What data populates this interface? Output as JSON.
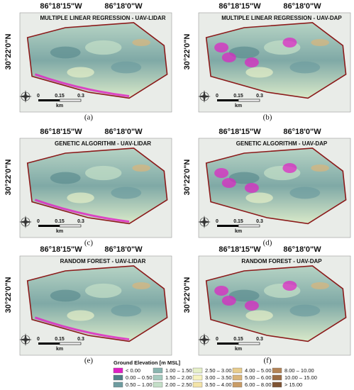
{
  "panels": [
    {
      "title": "MULTIPLE LINEAR REGRESSION - UAV-LIDAR",
      "lon_labels": [
        "86°18'15\"W",
        "86°18'0\"W"
      ],
      "lat_label": "30°22'0\"N",
      "scale": [
        "0",
        "0.15",
        "0.3"
      ],
      "scale_unit": "km",
      "caption": "(a)"
    },
    {
      "title": "MULTIPLE LINEAR REGRESSION - UAV-DAP",
      "lon_labels": [
        "86°18'15\"W",
        "86°18'0\"W"
      ],
      "lat_label": "30°22'0\"N",
      "scale": [
        "0",
        "0.15",
        "0.3"
      ],
      "scale_unit": "km",
      "caption": "(b)"
    },
    {
      "title": "GENETIC ALGORITHM - UAV-LIDAR",
      "lon_labels": [
        "86°18'15\"W",
        "86°18'0\"W"
      ],
      "lat_label": "30°22'0\"N",
      "scale": [
        "0",
        "0.15",
        "0.3"
      ],
      "scale_unit": "km",
      "caption": "(c)"
    },
    {
      "title": "GENETIC ALGORITHM - UAV-DAP",
      "lon_labels": [
        "86°18'15\"W",
        "86°18'0\"W"
      ],
      "lat_label": "30°22'0\"N",
      "scale": [
        "0",
        "0.15",
        "0.3"
      ],
      "scale_unit": "km",
      "caption": "(d)"
    },
    {
      "title": "RANDOM FOREST - UAV-LIDAR",
      "lon_labels": [
        "86°18'15\"W",
        "86°18'0\"W"
      ],
      "lat_label": "30°22'0\"N",
      "scale": [
        "0",
        "0.15",
        "0.3"
      ],
      "scale_unit": "km",
      "caption": "(e)"
    },
    {
      "title": "RANDOM FOREST - UAV-DAP",
      "lon_labels": [
        "86°18'15\"W",
        "86°18'0\"W"
      ],
      "lat_label": "30°22'0\"N",
      "scale": [
        "0",
        "0.15",
        "0.3"
      ],
      "scale_unit": "km",
      "caption": "(f)"
    }
  ],
  "legend": {
    "title": "Ground Elevation [m MSL]",
    "items": [
      {
        "label": "< 0.00",
        "color": "#e01fc4"
      },
      {
        "label": "0.00 – 0.50",
        "color": "#4f7f86"
      },
      {
        "label": "0.50 – 1.00",
        "color": "#6e9ca0"
      },
      {
        "label": "1.00 – 1.50",
        "color": "#8ab5b0"
      },
      {
        "label": "1.50 – 2.00",
        "color": "#a6cbbf"
      },
      {
        "label": "2.00 – 2.50",
        "color": "#c4dfc8"
      },
      {
        "label": "2.50 – 3.00",
        "color": "#e6f0c8"
      },
      {
        "label": "3.00 – 3.50",
        "color": "#f7f3bf"
      },
      {
        "label": "3.50 – 4.00",
        "color": "#f4e4a8"
      },
      {
        "label": "4.00 – 5.00",
        "color": "#e8cc8c"
      },
      {
        "label": "5.00 – 6.00",
        "color": "#dab57a"
      },
      {
        "label": "6.00 – 8.00",
        "color": "#c99c66"
      },
      {
        "label": "8.00 – 10.00",
        "color": "#b38456"
      },
      {
        "label": "10.00 – 15.00",
        "color": "#9b6c44"
      },
      {
        "label": "> 15.00",
        "color": "#7f5434"
      }
    ]
  }
}
